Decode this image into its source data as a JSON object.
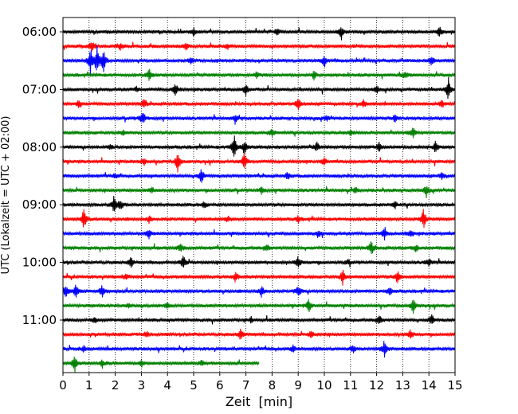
{
  "chart_data": {
    "type": "line",
    "title": "",
    "xlabel": "Zeit  [min]",
    "ylabel": "UTC (Lokalzeit = UTC + 02:00)",
    "xlim": [
      0,
      15
    ],
    "x_ticks": [
      0,
      1,
      2,
      3,
      4,
      5,
      6,
      7,
      8,
      9,
      10,
      11,
      12,
      13,
      14,
      15
    ],
    "x_tick_labels": [
      "0",
      "1",
      "2",
      "3",
      "4",
      "5",
      "6",
      "7",
      "8",
      "9",
      "10",
      "11",
      "12",
      "13",
      "14",
      "15"
    ],
    "grid": "vertical dotted",
    "y_tick_labels": [
      "06:00",
      "07:00",
      "08:00",
      "09:00",
      "10:00",
      "11:00"
    ],
    "y_ticks_row_index": [
      0,
      4,
      8,
      12,
      16,
      20
    ],
    "minutes_per_row": 15,
    "trace_colors": [
      "#000000",
      "#ff0000",
      "#0000ff",
      "#008000"
    ],
    "rows": [
      {
        "start": "06:00",
        "color": "#000000",
        "duration_min": 15,
        "spikes": [
          [
            10.65,
            1.0
          ],
          [
            14.4,
            0.8
          ],
          [
            5.0,
            0.5
          ],
          [
            8.2,
            0.5
          ]
        ]
      },
      {
        "start": "06:15",
        "color": "#ff0000",
        "duration_min": 15,
        "spikes": [
          [
            1.1,
            0.7
          ],
          [
            2.2,
            0.5
          ],
          [
            4.7,
            0.5
          ],
          [
            6.3,
            0.4
          ]
        ]
      },
      {
        "start": "06:30",
        "color": "#0000ff",
        "duration_min": 15,
        "spikes": [
          [
            1.05,
            1.8
          ],
          [
            1.3,
            2.0
          ],
          [
            1.55,
            1.6
          ],
          [
            10.0,
            0.9
          ],
          [
            14.1,
            0.6
          ],
          [
            4.9,
            0.4
          ]
        ]
      },
      {
        "start": "06:45",
        "color": "#008000",
        "duration_min": 15,
        "spikes": [
          [
            3.3,
            0.8
          ],
          [
            9.6,
            0.6
          ],
          [
            13.1,
            0.5
          ],
          [
            7.4,
            0.4
          ]
        ]
      },
      {
        "start": "07:00",
        "color": "#000000",
        "duration_min": 15,
        "spikes": [
          [
            4.3,
            1.0
          ],
          [
            7.0,
            0.8
          ],
          [
            14.75,
            1.8
          ],
          [
            12.0,
            0.5
          ],
          [
            2.8,
            0.4
          ]
        ]
      },
      {
        "start": "07:15",
        "color": "#ff0000",
        "duration_min": 15,
        "spikes": [
          [
            0.6,
            0.6
          ],
          [
            3.1,
            0.6
          ],
          [
            9.0,
            0.9
          ],
          [
            11.5,
            0.5
          ],
          [
            14.5,
            0.5
          ]
        ]
      },
      {
        "start": "07:30",
        "color": "#0000ff",
        "duration_min": 15,
        "spikes": [
          [
            3.05,
            1.1
          ],
          [
            6.6,
            0.5
          ],
          [
            12.7,
            0.5
          ],
          [
            10.1,
            0.4
          ]
        ]
      },
      {
        "start": "07:45",
        "color": "#008000",
        "duration_min": 15,
        "spikes": [
          [
            13.4,
            0.9
          ],
          [
            8.0,
            0.5
          ],
          [
            2.3,
            0.4
          ],
          [
            11.0,
            0.4
          ]
        ]
      },
      {
        "start": "08:00",
        "color": "#000000",
        "duration_min": 15,
        "spikes": [
          [
            6.55,
            1.8
          ],
          [
            6.95,
            1.2
          ],
          [
            9.7,
            0.8
          ],
          [
            14.25,
            0.8
          ],
          [
            12.1,
            0.6
          ],
          [
            1.8,
            0.4
          ]
        ]
      },
      {
        "start": "08:15",
        "color": "#ff0000",
        "duration_min": 15,
        "spikes": [
          [
            4.4,
            1.7
          ],
          [
            6.95,
            1.5
          ],
          [
            3.1,
            0.5
          ],
          [
            10.0,
            0.5
          ]
        ]
      },
      {
        "start": "08:30",
        "color": "#0000ff",
        "duration_min": 15,
        "spikes": [
          [
            5.3,
            1.1
          ],
          [
            8.6,
            0.5
          ],
          [
            14.5,
            0.5
          ],
          [
            2.0,
            0.4
          ]
        ]
      },
      {
        "start": "08:45",
        "color": "#008000",
        "duration_min": 15,
        "spikes": [
          [
            13.9,
            0.9
          ],
          [
            7.6,
            0.5
          ],
          [
            3.4,
            0.4
          ],
          [
            11.2,
            0.4
          ]
        ]
      },
      {
        "start": "09:00",
        "color": "#000000",
        "duration_min": 15,
        "spikes": [
          [
            1.95,
            1.2
          ],
          [
            2.2,
            0.8
          ],
          [
            12.7,
            0.5
          ],
          [
            5.4,
            0.4
          ]
        ]
      },
      {
        "start": "09:15",
        "color": "#ff0000",
        "duration_min": 15,
        "spikes": [
          [
            0.8,
            1.7
          ],
          [
            13.8,
            1.6
          ],
          [
            3.3,
            0.5
          ],
          [
            9.0,
            0.5
          ],
          [
            6.3,
            0.4
          ]
        ]
      },
      {
        "start": "09:30",
        "color": "#0000ff",
        "duration_min": 15,
        "spikes": [
          [
            3.3,
            0.7
          ],
          [
            12.3,
            1.0
          ],
          [
            13.3,
            0.6
          ],
          [
            9.8,
            0.4
          ]
        ]
      },
      {
        "start": "09:45",
        "color": "#008000",
        "duration_min": 15,
        "spikes": [
          [
            11.8,
            1.0
          ],
          [
            4.5,
            0.6
          ],
          [
            13.5,
            0.5
          ],
          [
            7.8,
            0.4
          ]
        ]
      },
      {
        "start": "10:00",
        "color": "#000000",
        "duration_min": 15,
        "spikes": [
          [
            2.6,
            0.8
          ],
          [
            4.6,
            1.1
          ],
          [
            9.0,
            0.9
          ],
          [
            14.0,
            0.6
          ],
          [
            10.9,
            0.4
          ]
        ]
      },
      {
        "start": "10:15",
        "color": "#ff0000",
        "duration_min": 15,
        "spikes": [
          [
            6.6,
            0.7
          ],
          [
            10.7,
            1.1
          ],
          [
            12.8,
            1.0
          ],
          [
            2.4,
            0.4
          ]
        ]
      },
      {
        "start": "10:30",
        "color": "#0000ff",
        "duration_min": 15,
        "spikes": [
          [
            0.1,
            1.0
          ],
          [
            0.5,
            1.0
          ],
          [
            1.5,
            0.8
          ],
          [
            7.6,
            0.8
          ],
          [
            9.0,
            0.9
          ],
          [
            12.5,
            0.6
          ]
        ]
      },
      {
        "start": "10:45",
        "color": "#008000",
        "duration_min": 15,
        "spikes": [
          [
            9.4,
            0.9
          ],
          [
            13.4,
            1.0
          ],
          [
            4.0,
            0.5
          ],
          [
            2.5,
            0.4
          ]
        ]
      },
      {
        "start": "11:00",
        "color": "#000000",
        "duration_min": 15,
        "spikes": [
          [
            14.1,
            0.9
          ],
          [
            12.1,
            0.6
          ],
          [
            1.2,
            0.4
          ],
          [
            7.2,
            0.4
          ]
        ]
      },
      {
        "start": "11:15",
        "color": "#ff0000",
        "duration_min": 15,
        "spikes": [
          [
            6.8,
            0.8
          ],
          [
            13.3,
            0.7
          ],
          [
            9.5,
            0.5
          ],
          [
            3.2,
            0.4
          ]
        ]
      },
      {
        "start": "11:30",
        "color": "#0000ff",
        "duration_min": 15,
        "spikes": [
          [
            12.3,
            1.2
          ],
          [
            11.1,
            0.6
          ],
          [
            8.8,
            0.5
          ],
          [
            0.8,
            0.4
          ]
        ]
      },
      {
        "start": "11:45",
        "color": "#008000",
        "duration_min": 7.5,
        "spikes": [
          [
            0.45,
            1.3
          ],
          [
            1.5,
            0.6
          ],
          [
            3.0,
            0.5
          ],
          [
            5.3,
            0.4
          ]
        ]
      }
    ]
  }
}
